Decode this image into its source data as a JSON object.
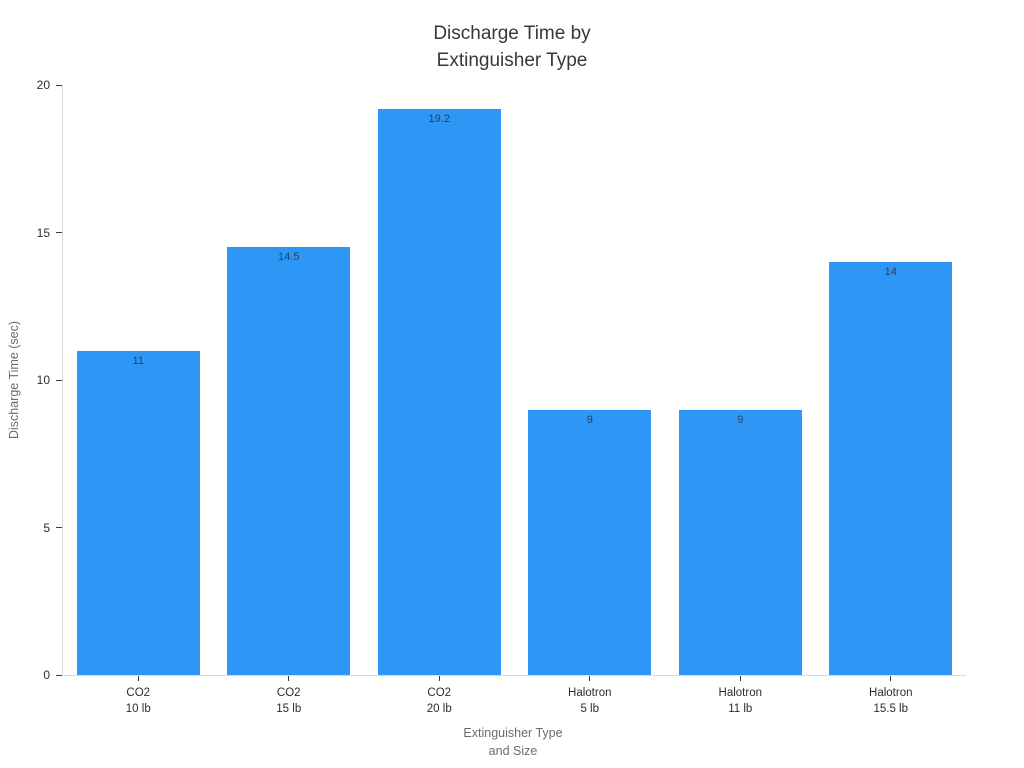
{
  "chart_data": {
    "type": "bar",
    "title": "Discharge Time by\nExtinguisher Type",
    "xlabel": "Extinguisher Type\nand Size",
    "ylabel": "Discharge Time (sec)",
    "categories": [
      "CO2\n10 lb",
      "CO2\n15 lb",
      "CO2\n20 lb",
      "Halotron\n5 lb",
      "Halotron\n11 lb",
      "Halotron\n15.5 lb"
    ],
    "values": [
      11,
      14.5,
      19.2,
      9,
      9,
      14
    ],
    "bar_labels": [
      "11",
      "14.5",
      "19.2",
      "9",
      "9",
      "14"
    ],
    "ylim": [
      0,
      20
    ],
    "yticks": [
      0,
      5,
      10,
      15,
      20
    ],
    "grid": false,
    "legend": "none",
    "bar_color": "#2e96f4",
    "bar_width_fraction": 0.82
  },
  "colors": {
    "background": "#ffffff",
    "bar": "#2e96f4",
    "bar_value_label": "#2a3f5f",
    "tick_label": "#2d2d2d",
    "tick_mark": "#3a3a3a",
    "axis_line": "#d8d8d8",
    "axis_title": "#6b6b6b",
    "title": "#383838"
  }
}
